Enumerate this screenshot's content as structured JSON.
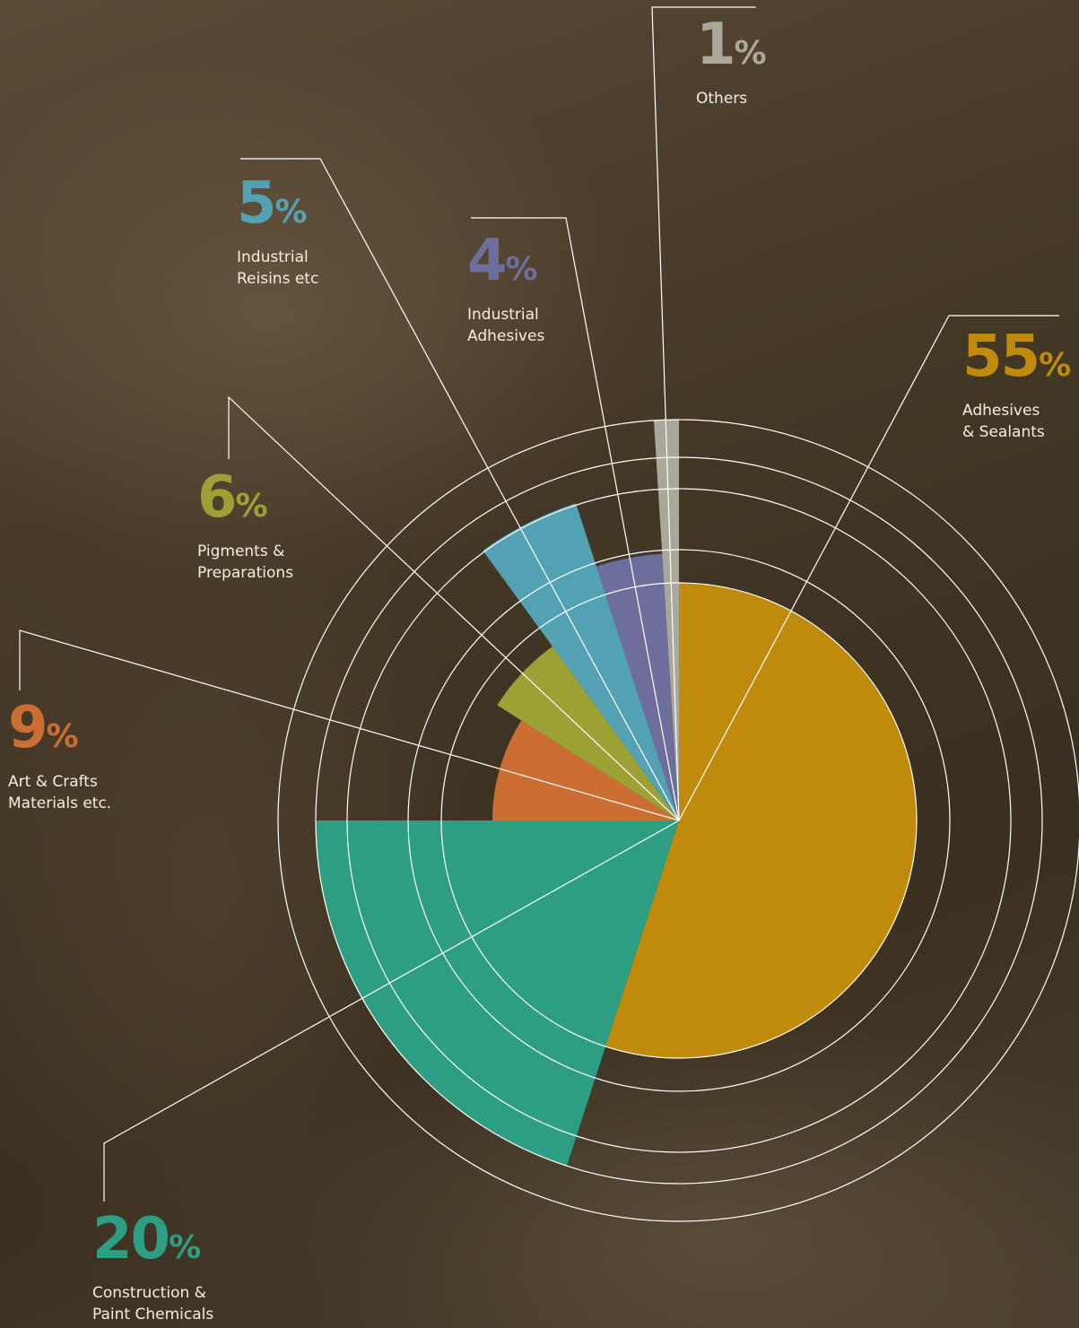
{
  "chart_data": {
    "type": "pie",
    "unit": "%",
    "categories": [
      "Adhesives\n& Sealants",
      "Construction &\nPaint Chemicals",
      "Art & Crafts\nMaterials etc.",
      "Pigments &\nPreparations",
      "Industrial\nReisins etc",
      "Industrial\nAdhesives",
      "Others"
    ],
    "values": [
      55,
      20,
      9,
      6,
      5,
      4,
      1
    ],
    "colors": [
      "#c08a0c",
      "#2e9e83",
      "#cc6e34",
      "#9ca136",
      "#53a2b3",
      "#6e6e9c",
      "#a9a89a"
    ]
  }
}
